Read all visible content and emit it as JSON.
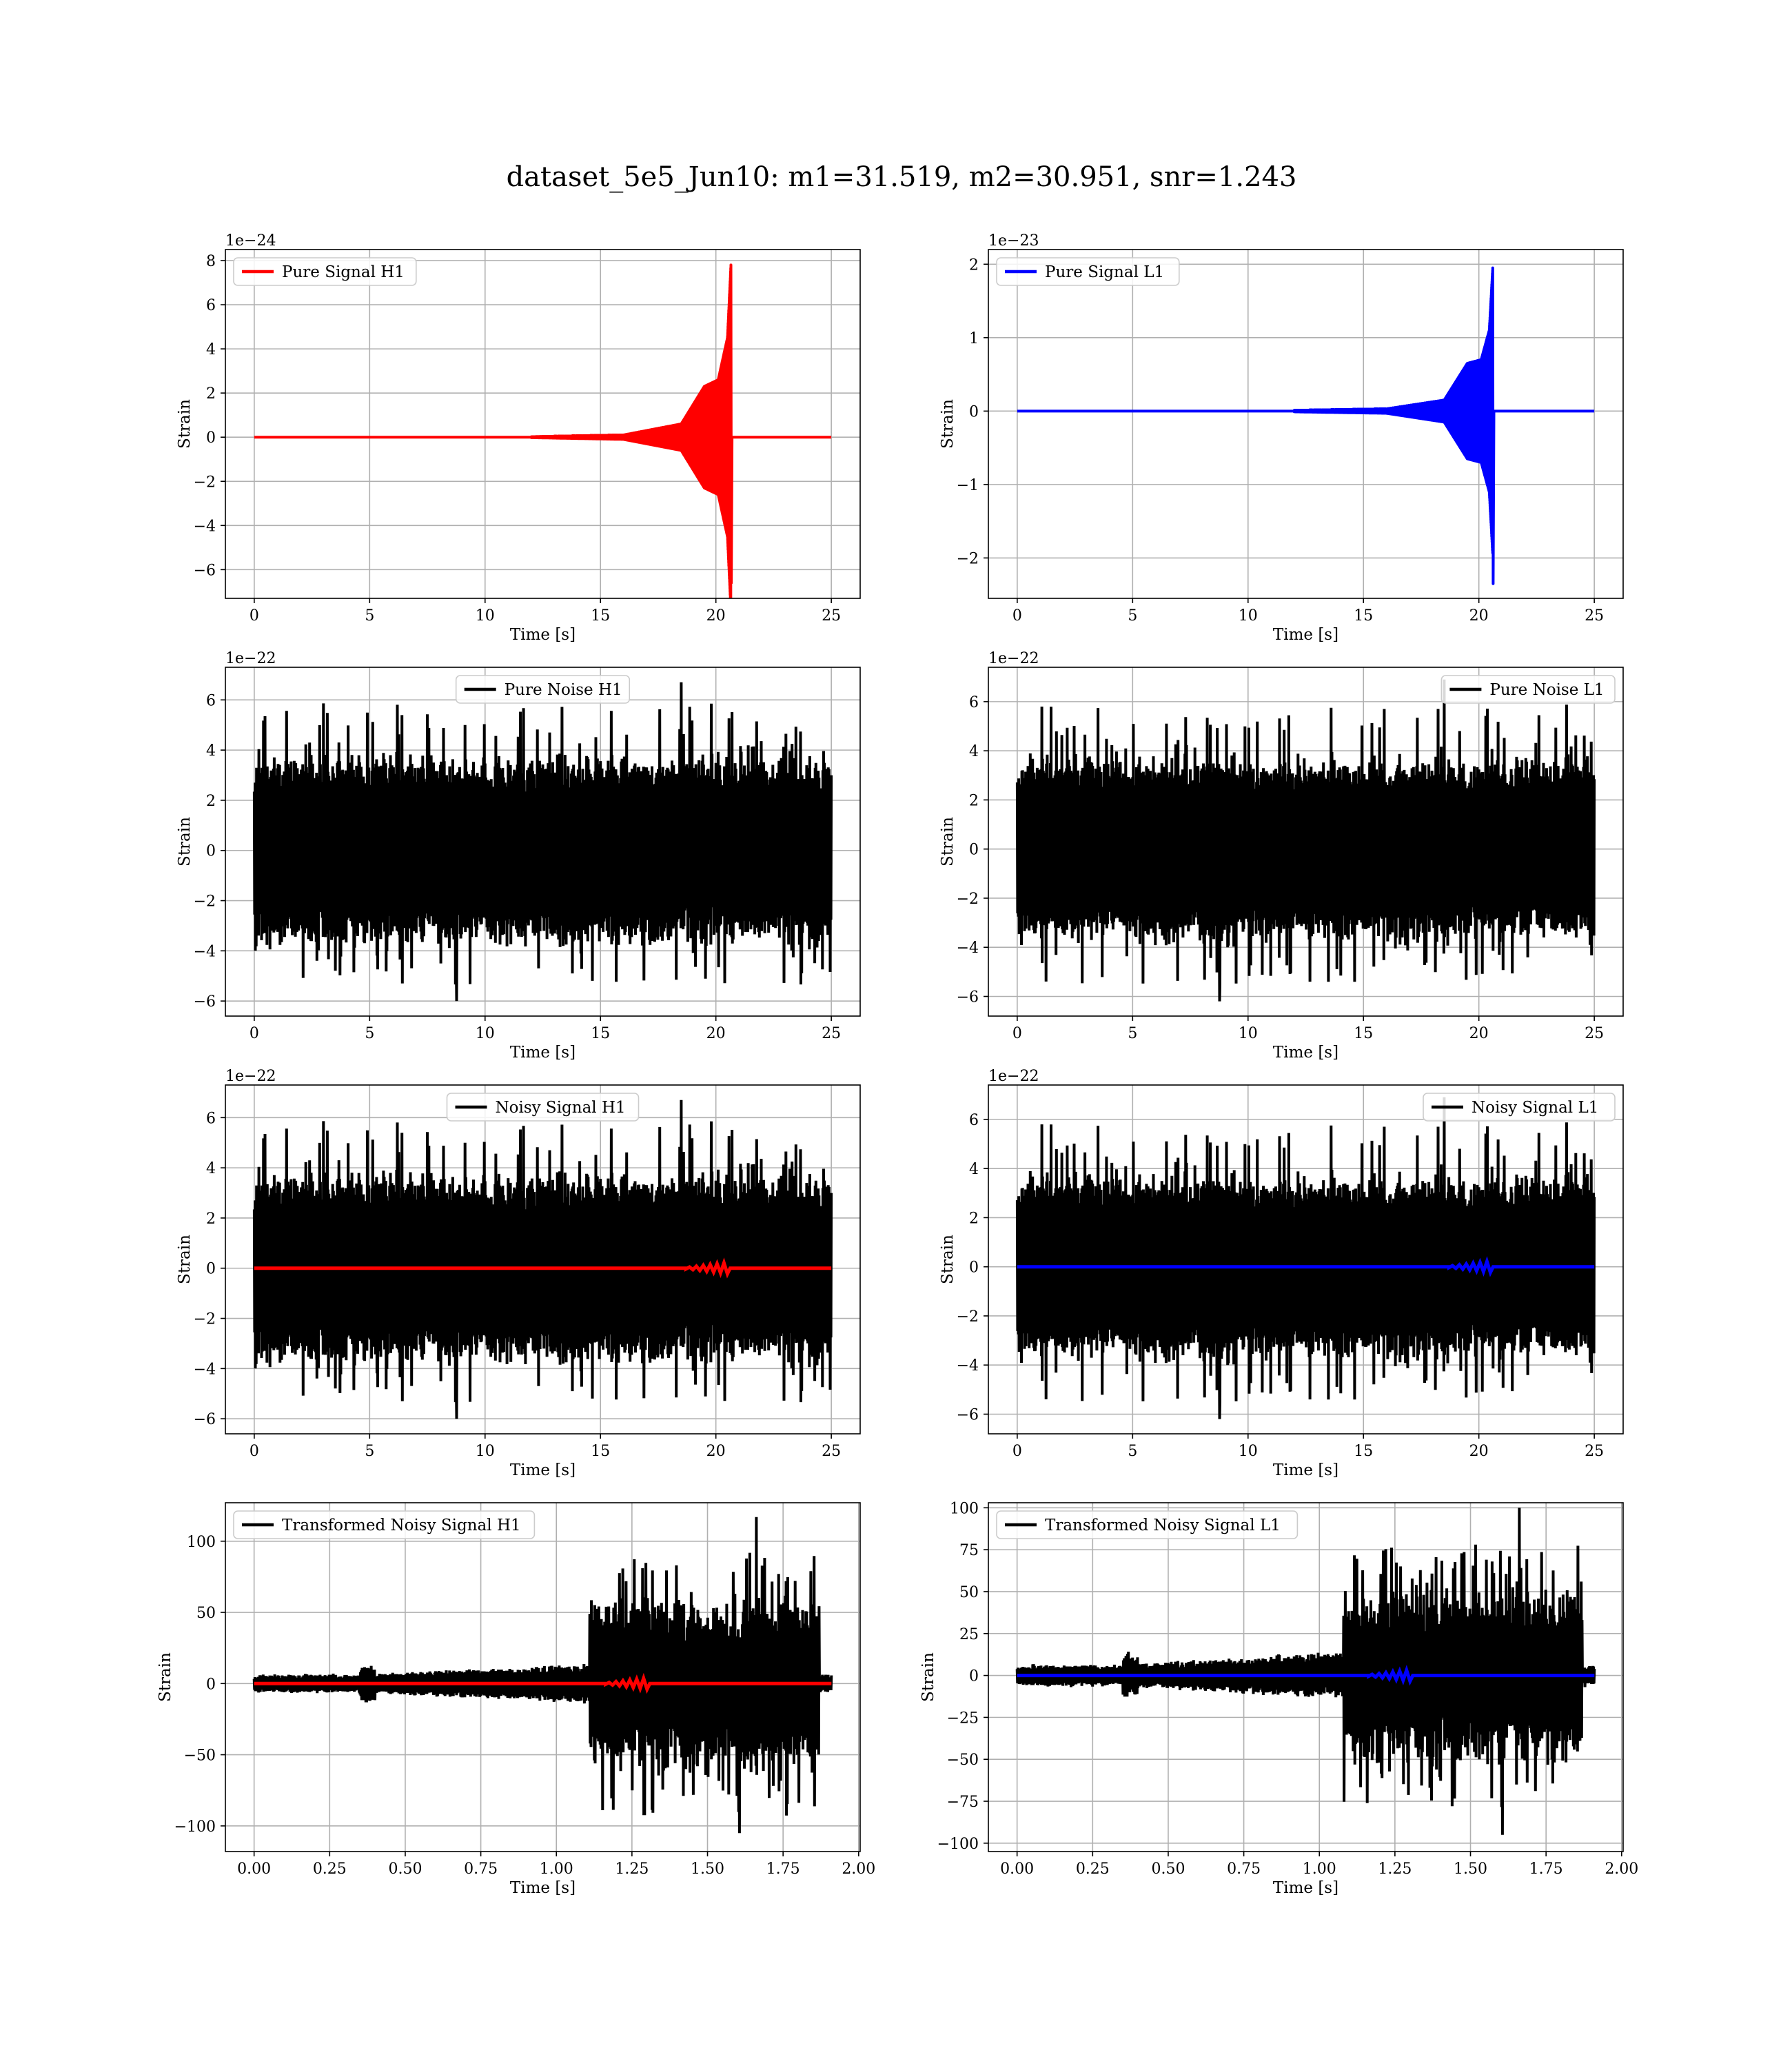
{
  "figure": {
    "title": "dataset_5e5_Jun10: m1=31.519, m2=30.951, snr=1.243"
  },
  "chart_data": [
    {
      "id": "pure-signal-h1",
      "type": "line",
      "legend_loc": "upper left",
      "grid": true,
      "xlabel": "Time [s]",
      "ylabel": "Strain",
      "offset_text": "1e−24",
      "xlim": [
        -1.25,
        26.25
      ],
      "ylim": [
        -7.3,
        8.5
      ],
      "xticks": [
        0,
        5,
        10,
        15,
        20,
        25
      ],
      "xtick_labels": [
        "0",
        "5",
        "10",
        "15",
        "20",
        "25"
      ],
      "yticks": [
        -6,
        -4,
        -2,
        0,
        2,
        4,
        6,
        8
      ],
      "ytick_labels": [
        "−6",
        "−4",
        "−2",
        "0",
        "2",
        "4",
        "6",
        "8"
      ],
      "series": [
        {
          "name": "Pure Signal H1",
          "color": "#ff0000",
          "kind": "chirp",
          "t0": 0,
          "t_end": 25,
          "t_onset": 12,
          "t_merge": 20.65,
          "amp_envelope_points": [
            [
              12,
              0.02
            ],
            [
              16,
              0.1
            ],
            [
              18.5,
              0.6
            ],
            [
              19.5,
              2.3
            ],
            [
              20.1,
              2.6
            ],
            [
              20.5,
              4.5
            ],
            [
              20.65,
              7.8
            ]
          ],
          "min_at_merge": -6.6
        }
      ]
    },
    {
      "id": "pure-signal-l1",
      "type": "line",
      "legend_loc": "upper left",
      "grid": true,
      "xlabel": "Time [s]",
      "ylabel": "Strain",
      "offset_text": "1e−23",
      "xlim": [
        -1.25,
        26.25
      ],
      "ylim": [
        -2.55,
        2.2
      ],
      "xticks": [
        0,
        5,
        10,
        15,
        20,
        25
      ],
      "xtick_labels": [
        "0",
        "5",
        "10",
        "15",
        "20",
        "25"
      ],
      "yticks": [
        -2,
        -1,
        0,
        1,
        2
      ],
      "ytick_labels": [
        "−2",
        "−1",
        "0",
        "1",
        "2"
      ],
      "series": [
        {
          "name": "Pure Signal L1",
          "color": "#0000ff",
          "kind": "chirp",
          "t0": 0,
          "t_end": 25,
          "t_onset": 12,
          "t_merge": 20.6,
          "amp_envelope_points": [
            [
              12,
              0.01
            ],
            [
              16,
              0.03
            ],
            [
              18.5,
              0.15
            ],
            [
              19.5,
              0.65
            ],
            [
              20.1,
              0.7
            ],
            [
              20.45,
              1.1
            ],
            [
              20.6,
              1.95
            ]
          ],
          "min_at_merge": -2.35
        }
      ]
    },
    {
      "id": "pure-noise-h1",
      "type": "line",
      "legend_loc": "upper center",
      "grid": true,
      "xlabel": "Time [s]",
      "ylabel": "Strain",
      "offset_text": "1e−22",
      "xlim": [
        -1.25,
        26.25
      ],
      "ylim": [
        -6.6,
        7.3
      ],
      "xticks": [
        0,
        5,
        10,
        15,
        20,
        25
      ],
      "xtick_labels": [
        "0",
        "5",
        "10",
        "15",
        "20",
        "25"
      ],
      "yticks": [
        -6,
        -4,
        -2,
        0,
        2,
        4,
        6
      ],
      "ytick_labels": [
        "−6",
        "−4",
        "−2",
        "0",
        "2",
        "4",
        "6"
      ],
      "series": [
        {
          "name": "Pure Noise H1",
          "color": "#000000",
          "kind": "noise",
          "t0": 0,
          "t_end": 25,
          "core": 3.4,
          "peak_max": 6.7,
          "peak_min": -6.0,
          "seed": 11
        }
      ]
    },
    {
      "id": "pure-noise-l1",
      "type": "line",
      "legend_loc": "upper right",
      "grid": true,
      "xlabel": "Time [s]",
      "ylabel": "Strain",
      "offset_text": "1e−22",
      "xlim": [
        -1.25,
        26.25
      ],
      "ylim": [
        -6.8,
        7.4
      ],
      "xticks": [
        0,
        5,
        10,
        15,
        20,
        25
      ],
      "xtick_labels": [
        "0",
        "5",
        "10",
        "15",
        "20",
        "25"
      ],
      "yticks": [
        -6,
        -4,
        -2,
        0,
        2,
        4,
        6
      ],
      "ytick_labels": [
        "−6",
        "−4",
        "−2",
        "0",
        "2",
        "4",
        "6"
      ],
      "series": [
        {
          "name": "Pure Noise L1",
          "color": "#000000",
          "kind": "noise",
          "t0": 0,
          "t_end": 25,
          "core": 3.4,
          "peak_max": 6.9,
          "peak_min": -6.2,
          "seed": 23
        }
      ]
    },
    {
      "id": "noisy-signal-h1",
      "type": "line",
      "legend_loc": "upper center",
      "grid": true,
      "xlabel": "Time [s]",
      "ylabel": "Strain",
      "offset_text": "1e−22",
      "xlim": [
        -1.25,
        26.25
      ],
      "ylim": [
        -6.6,
        7.3
      ],
      "xticks": [
        0,
        5,
        10,
        15,
        20,
        25
      ],
      "xtick_labels": [
        "0",
        "5",
        "10",
        "15",
        "20",
        "25"
      ],
      "yticks": [
        -6,
        -4,
        -2,
        0,
        2,
        4,
        6
      ],
      "ytick_labels": [
        "−6",
        "−4",
        "−2",
        "0",
        "2",
        "4",
        "6"
      ],
      "series": [
        {
          "name": "Noisy Signal H1",
          "color": "#000000",
          "kind": "noise",
          "t0": 0,
          "t_end": 25,
          "core": 3.4,
          "peak_max": 6.7,
          "peak_min": -6.0,
          "seed": 11
        },
        {
          "name": "",
          "color": "#ff0000",
          "kind": "flat",
          "t0": 0,
          "t_end": 25,
          "y": 0,
          "bump_at": 20.5
        }
      ]
    },
    {
      "id": "noisy-signal-l1",
      "type": "line",
      "legend_loc": "upper right",
      "grid": true,
      "xlabel": "Time [s]",
      "ylabel": "Strain",
      "offset_text": "1e−22",
      "xlim": [
        -1.25,
        26.25
      ],
      "ylim": [
        -6.8,
        7.4
      ],
      "xticks": [
        0,
        5,
        10,
        15,
        20,
        25
      ],
      "xtick_labels": [
        "0",
        "5",
        "10",
        "15",
        "20",
        "25"
      ],
      "yticks": [
        -6,
        -4,
        -2,
        0,
        2,
        4,
        6
      ],
      "ytick_labels": [
        "−6",
        "−4",
        "−2",
        "0",
        "2",
        "4",
        "6"
      ],
      "series": [
        {
          "name": "Noisy Signal L1",
          "color": "#000000",
          "kind": "noise",
          "t0": 0,
          "t_end": 25,
          "core": 3.4,
          "peak_max": 6.9,
          "peak_min": -6.2,
          "seed": 23
        },
        {
          "name": "",
          "color": "#0000ff",
          "kind": "flat",
          "t0": 0,
          "t_end": 25,
          "y": 0,
          "bump_at": 20.5
        }
      ]
    },
    {
      "id": "transformed-h1",
      "type": "line",
      "legend_loc": "upper left",
      "grid": true,
      "xlabel": "Time [s]",
      "ylabel": "Strain",
      "offset_text": "",
      "xlim": [
        -0.095,
        2.005
      ],
      "ylim": [
        -118,
        127
      ],
      "xticks": [
        0.0,
        0.25,
        0.5,
        0.75,
        1.0,
        1.25,
        1.5,
        1.75,
        2.0
      ],
      "xtick_labels": [
        "0.00",
        "0.25",
        "0.50",
        "0.75",
        "1.00",
        "1.25",
        "1.50",
        "1.75",
        "2.00"
      ],
      "yticks": [
        -100,
        -50,
        0,
        50,
        100
      ],
      "ytick_labels": [
        "−100",
        "−50",
        "0",
        "50",
        "100"
      ],
      "series": [
        {
          "name": "Transformed Noisy Signal H1",
          "color": "#000000",
          "kind": "burst",
          "t0": 0,
          "t_end": 1.91,
          "t_burst": 1.11,
          "t_stop": 1.87,
          "pre_amp": 6,
          "post_amp": 65,
          "peak_max": 117,
          "peak_min": -105,
          "seed": 37
        },
        {
          "name": "",
          "color": "#ff0000",
          "kind": "flat",
          "t0": 0,
          "t_end": 1.91,
          "y": 0,
          "bump_at": 1.3
        }
      ]
    },
    {
      "id": "transformed-l1",
      "type": "line",
      "legend_loc": "upper left",
      "grid": true,
      "xlabel": "Time [s]",
      "ylabel": "Strain",
      "offset_text": "",
      "xlim": [
        -0.095,
        2.005
      ],
      "ylim": [
        -105,
        103
      ],
      "xticks": [
        0.0,
        0.25,
        0.5,
        0.75,
        1.0,
        1.25,
        1.5,
        1.75,
        2.0
      ],
      "xtick_labels": [
        "0.00",
        "0.25",
        "0.50",
        "0.75",
        "1.00",
        "1.25",
        "1.50",
        "1.75",
        "2.00"
      ],
      "yticks": [
        -100,
        -75,
        -50,
        -25,
        0,
        25,
        50,
        75,
        100
      ],
      "ytick_labels": [
        "−100",
        "−75",
        "−50",
        "−25",
        "0",
        "25",
        "50",
        "75",
        "100"
      ],
      "series": [
        {
          "name": "Transformed Noisy Signal L1",
          "color": "#000000",
          "kind": "burst",
          "t0": 0,
          "t_end": 1.91,
          "t_burst": 1.08,
          "t_stop": 1.87,
          "pre_amp": 6,
          "post_amp": 55,
          "peak_max": 100,
          "peak_min": -95,
          "seed": 53
        },
        {
          "name": "",
          "color": "#0000ff",
          "kind": "flat",
          "t0": 0,
          "t_end": 1.91,
          "y": 0,
          "bump_at": 1.3
        }
      ]
    }
  ]
}
